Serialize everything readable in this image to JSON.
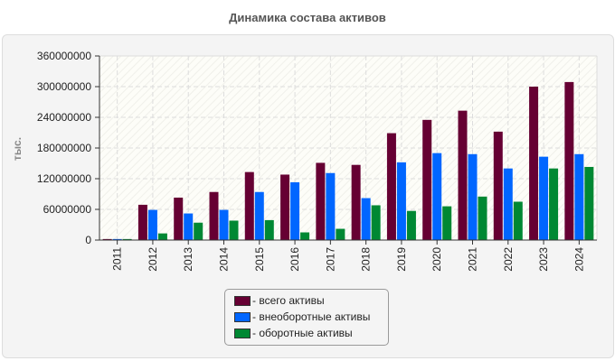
{
  "chart_data": {
    "type": "bar",
    "title": "Динамика состава активов",
    "ylabel": "тыс.",
    "xlabel": "",
    "ylim": [
      0,
      360000000
    ],
    "yticks": [
      "0",
      "60000000",
      "120000000",
      "180000000",
      "240000000",
      "300000000",
      "360000000"
    ],
    "grid": true,
    "legend_position": "bottom",
    "categories": [
      "2011",
      "2012",
      "2013",
      "2014",
      "2015",
      "2016",
      "2017",
      "2018",
      "2019",
      "2020",
      "2021",
      "2022",
      "2023",
      "2024"
    ],
    "series": [
      {
        "name": "- всего активы",
        "color": "#660033",
        "values": [
          2000000,
          69000000,
          83000000,
          94000000,
          133000000,
          128000000,
          151000000,
          147000000,
          209000000,
          235000000,
          253000000,
          212000000,
          300000000,
          309000000
        ]
      },
      {
        "name": "- внеоборотные активы",
        "color": "#0066ff",
        "values": [
          2000000,
          59000000,
          52000000,
          59000000,
          94000000,
          113000000,
          131000000,
          82000000,
          152000000,
          170000000,
          168000000,
          140000000,
          163000000,
          168000000
        ]
      },
      {
        "name": "- оборотные активы",
        "color": "#008833",
        "values": [
          2000000,
          13000000,
          34000000,
          38000000,
          39000000,
          15000000,
          22000000,
          68000000,
          57000000,
          66000000,
          85000000,
          75000000,
          140000000,
          143000000
        ]
      }
    ]
  }
}
